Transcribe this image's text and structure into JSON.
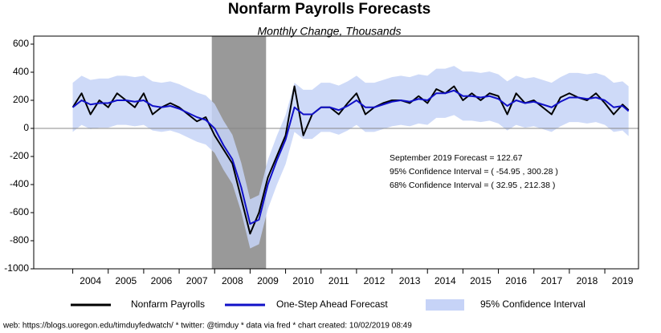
{
  "chart_data": {
    "type": "line",
    "title": "Nonfarm Payrolls Forecasts",
    "subtitle": "Monthly Change, Thousands",
    "x": [
      2004,
      2004.25,
      2004.5,
      2004.75,
      2005,
      2005.25,
      2005.5,
      2005.75,
      2006,
      2006.25,
      2006.5,
      2006.75,
      2007,
      2007.25,
      2007.5,
      2007.75,
      2008,
      2008.25,
      2008.5,
      2008.75,
      2009,
      2009.25,
      2009.5,
      2009.75,
      2010,
      2010.25,
      2010.5,
      2010.75,
      2011,
      2011.25,
      2011.5,
      2011.75,
      2012,
      2012.25,
      2012.5,
      2012.75,
      2013,
      2013.25,
      2013.5,
      2013.75,
      2014,
      2014.25,
      2014.5,
      2014.75,
      2015,
      2015.25,
      2015.5,
      2015.75,
      2016,
      2016.25,
      2016.5,
      2016.75,
      2017,
      2017.25,
      2017.5,
      2017.75,
      2018,
      2018.25,
      2018.5,
      2018.75,
      2019,
      2019.25,
      2019.5,
      2019.67
    ],
    "series": [
      {
        "name": "Nonfarm Payrolls",
        "color": "#000000",
        "values": [
          150,
          250,
          100,
          200,
          150,
          250,
          200,
          150,
          250,
          100,
          150,
          180,
          150,
          100,
          50,
          80,
          -50,
          -150,
          -250,
          -500,
          -750,
          -600,
          -350,
          -200,
          -50,
          300,
          -50,
          100,
          150,
          150,
          100,
          180,
          250,
          100,
          150,
          180,
          200,
          200,
          180,
          230,
          180,
          280,
          250,
          300,
          200,
          250,
          200,
          250,
          230,
          100,
          250,
          180,
          200,
          150,
          100,
          220,
          250,
          220,
          200,
          250,
          180,
          100,
          170,
          130
        ]
      },
      {
        "name": "One-Step Ahead Forecast",
        "color": "#1010c8",
        "values": [
          150,
          200,
          170,
          180,
          180,
          200,
          200,
          190,
          200,
          160,
          150,
          160,
          140,
          110,
          80,
          60,
          0,
          -120,
          -220,
          -420,
          -680,
          -650,
          -400,
          -230,
          -80,
          150,
          100,
          100,
          150,
          150,
          130,
          160,
          200,
          150,
          150,
          170,
          190,
          200,
          190,
          210,
          200,
          250,
          250,
          270,
          230,
          230,
          220,
          230,
          210,
          160,
          200,
          180,
          190,
          170,
          150,
          190,
          220,
          220,
          210,
          220,
          200,
          150,
          160,
          122.67
        ]
      }
    ],
    "band": {
      "name": "95% Confidence Interval",
      "color": "#c6d3f7",
      "upper": [
        325,
        375,
        345,
        355,
        355,
        375,
        375,
        365,
        375,
        335,
        325,
        335,
        315,
        285,
        255,
        235,
        175,
        55,
        -45,
        -245,
        -505,
        -475,
        -225,
        -55,
        95,
        325,
        275,
        275,
        325,
        325,
        305,
        335,
        375,
        325,
        325,
        345,
        365,
        375,
        365,
        385,
        375,
        425,
        425,
        445,
        405,
        405,
        395,
        405,
        385,
        335,
        375,
        355,
        365,
        345,
        325,
        365,
        395,
        395,
        385,
        395,
        375,
        325,
        335,
        300.28
      ],
      "lower": [
        -25,
        25,
        -5,
        5,
        5,
        25,
        25,
        15,
        25,
        -15,
        -25,
        -15,
        -35,
        -65,
        -95,
        -115,
        -175,
        -295,
        -395,
        -595,
        -855,
        -825,
        -575,
        -405,
        -255,
        -25,
        -75,
        -75,
        -25,
        -25,
        -45,
        -15,
        25,
        -25,
        -25,
        -5,
        15,
        25,
        15,
        35,
        25,
        75,
        75,
        95,
        55,
        55,
        45,
        55,
        35,
        -15,
        25,
        5,
        15,
        -5,
        -25,
        15,
        45,
        45,
        35,
        45,
        25,
        -25,
        -15,
        -54.95
      ]
    },
    "recession": [
      2007.92,
      2009.45
    ],
    "xlim": [
      2002.9,
      2019.95
    ],
    "xticks": [
      2004,
      2005,
      2006,
      2007,
      2008,
      2009,
      2010,
      2011,
      2012,
      2013,
      2014,
      2015,
      2016,
      2017,
      2018,
      2019
    ],
    "ylim": [
      -1000,
      600
    ],
    "yticks": [
      -1000,
      -800,
      -600,
      -400,
      -200,
      0,
      200,
      400,
      600
    ],
    "zero_line": true,
    "annotations": [
      "September 2019 Forecast =  122.67",
      "95% Confidence Interval = ( -54.95 , 300.28 )",
      "68% Confidence Interval = ( 32.95 , 212.38 )"
    ],
    "footer": "web: https://blogs.uoregon.edu/timduyfedwatch/ * twitter: @timduy * data via fred * chart created: 10/02/2019 08:49"
  }
}
